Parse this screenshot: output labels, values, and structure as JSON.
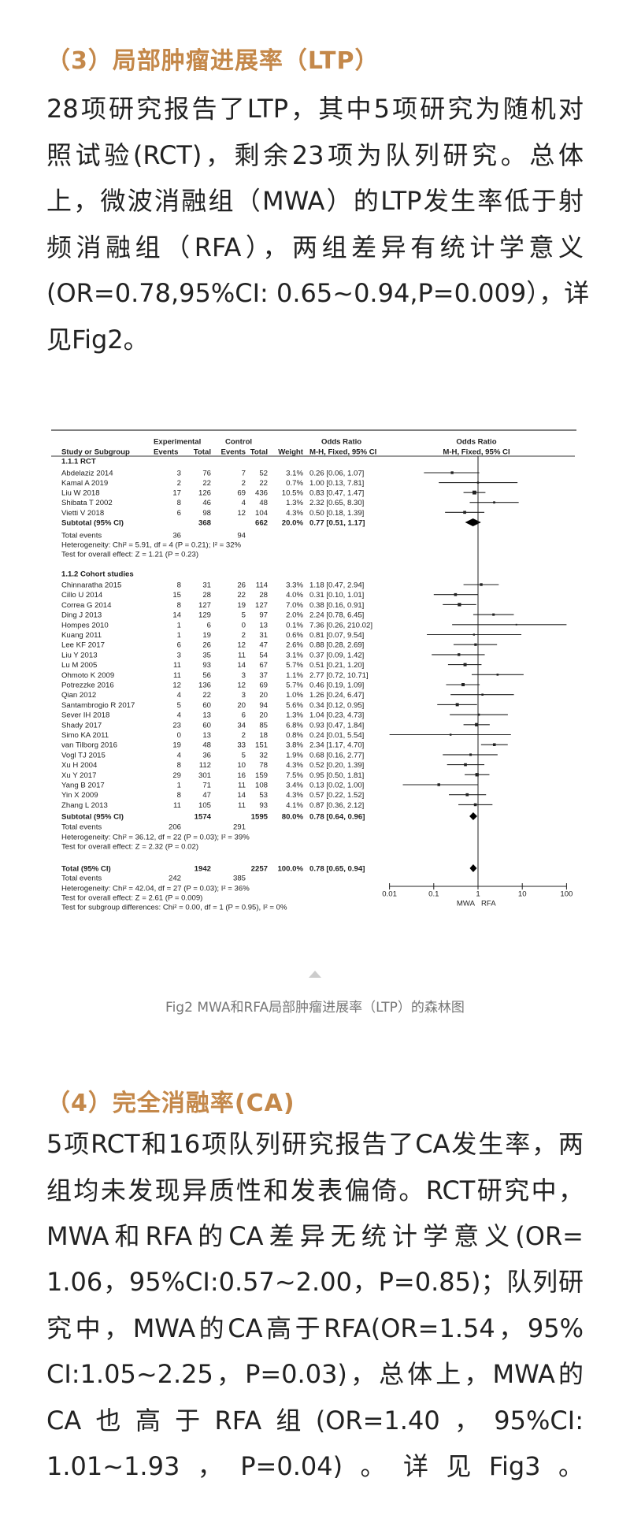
{
  "section3": {
    "title": "（3）局部肿瘤进展率（LTP）",
    "lines": [
      "28项研究报告了LTP，其中5项研究为随机对",
      "照试验(RCT)，剩余23项为队列研究。总体",
      "上，微波消融组（MWA）的LTP发生率低于射",
      "频消融组（RFA），两组差异有统计学意义",
      "(OR=0.78,95%CI: 0.65~0.94,P=0.009），详",
      "见Fig2。"
    ]
  },
  "figure": {
    "caption": "Fig2 MWA和RFA局部肿瘤进展率（LTP）的森林图",
    "expand_icon": "triangle-up-icon"
  },
  "chart_data": {
    "type": "forest",
    "headers": {
      "experimental": "Experimental",
      "control": "Control",
      "odds_ratio": "Odds Ratio",
      "study": "Study or Subgroup",
      "events": "Events",
      "total": "Total",
      "weight": "Weight",
      "method": "M-H, Fixed, 95% CI"
    },
    "x_axis": {
      "scale": "log",
      "ticks": [
        "0.01",
        "0.1",
        "1",
        "10",
        "100"
      ],
      "range": [
        0.01,
        100
      ],
      "left_label": "MWA",
      "right_label": "RFA"
    },
    "subgroups": [
      {
        "label": "1.1.1 RCT",
        "studies": [
          {
            "name": "Abdelaziz 2014",
            "e_ev": "3",
            "e_tot": "76",
            "c_ev": "7",
            "c_tot": "52",
            "weight": "3.1%",
            "or_text": "0.26 [0.06, 1.07]",
            "or": 0.26,
            "lo": 0.06,
            "hi": 1.07
          },
          {
            "name": "Kamal A 2019",
            "e_ev": "2",
            "e_tot": "22",
            "c_ev": "2",
            "c_tot": "22",
            "weight": "0.7%",
            "or_text": "1.00 [0.13, 7.81]",
            "or": 1.0,
            "lo": 0.13,
            "hi": 7.81
          },
          {
            "name": "Liu W 2018",
            "e_ev": "17",
            "e_tot": "126",
            "c_ev": "69",
            "c_tot": "436",
            "weight": "10.5%",
            "or_text": "0.83 [0.47, 1.47]",
            "or": 0.83,
            "lo": 0.47,
            "hi": 1.47
          },
          {
            "name": "Shibata T 2002",
            "e_ev": "8",
            "e_tot": "46",
            "c_ev": "4",
            "c_tot": "48",
            "weight": "1.3%",
            "or_text": "2.32 [0.65, 8.30]",
            "or": 2.32,
            "lo": 0.65,
            "hi": 8.3
          },
          {
            "name": "Vietti V 2018",
            "e_ev": "6",
            "e_tot": "98",
            "c_ev": "12",
            "c_tot": "104",
            "weight": "4.3%",
            "or_text": "0.50 [0.18, 1.39]",
            "or": 0.5,
            "lo": 0.18,
            "hi": 1.39
          }
        ],
        "subtotal": {
          "name": "Subtotal (95% CI)",
          "e_tot": "368",
          "c_tot": "662",
          "weight": "20.0%",
          "or_text": "0.77 [0.51, 1.17]",
          "or": 0.77,
          "lo": 0.51,
          "hi": 1.17
        },
        "total_events": {
          "label": "Total events",
          "e": "36",
          "c": "94"
        },
        "heterogeneity": "Heterogeneity: Chi² = 5.91, df = 4 (P = 0.21); I² = 32%",
        "overall_effect": "Test for overall effect: Z = 1.21 (P = 0.23)"
      },
      {
        "label": "1.1.2 Cohort studies",
        "studies": [
          {
            "name": "Chinnaratha 2015",
            "e_ev": "8",
            "e_tot": "31",
            "c_ev": "26",
            "c_tot": "114",
            "weight": "3.3%",
            "or_text": "1.18 [0.47, 2.94]",
            "or": 1.18,
            "lo": 0.47,
            "hi": 2.94
          },
          {
            "name": "Cillo U 2014",
            "e_ev": "15",
            "e_tot": "28",
            "c_ev": "22",
            "c_tot": "28",
            "weight": "4.0%",
            "or_text": "0.31 [0.10, 1.01]",
            "or": 0.31,
            "lo": 0.1,
            "hi": 1.01
          },
          {
            "name": "Correa G 2014",
            "e_ev": "8",
            "e_tot": "127",
            "c_ev": "19",
            "c_tot": "127",
            "weight": "7.0%",
            "or_text": "0.38 [0.16, 0.91]",
            "or": 0.38,
            "lo": 0.16,
            "hi": 0.91
          },
          {
            "name": "Ding J 2013",
            "e_ev": "14",
            "e_tot": "129",
            "c_ev": "5",
            "c_tot": "97",
            "weight": "2.0%",
            "or_text": "2.24 [0.78, 6.45]",
            "or": 2.24,
            "lo": 0.78,
            "hi": 6.45
          },
          {
            "name": "Hompes 2010",
            "e_ev": "1",
            "e_tot": "6",
            "c_ev": "0",
            "c_tot": "13",
            "weight": "0.1%",
            "or_text": "7.36 [0.26, 210.02]",
            "or": 7.36,
            "lo": 0.26,
            "hi": 210.02
          },
          {
            "name": "Kuang 2011",
            "e_ev": "1",
            "e_tot": "19",
            "c_ev": "2",
            "c_tot": "31",
            "weight": "0.6%",
            "or_text": "0.81 [0.07, 9.54]",
            "or": 0.81,
            "lo": 0.07,
            "hi": 9.54
          },
          {
            "name": "Lee KF 2017",
            "e_ev": "6",
            "e_tot": "26",
            "c_ev": "12",
            "c_tot": "47",
            "weight": "2.6%",
            "or_text": "0.88 [0.28, 2.69]",
            "or": 0.88,
            "lo": 0.28,
            "hi": 2.69
          },
          {
            "name": "Liu Y 2013",
            "e_ev": "3",
            "e_tot": "35",
            "c_ev": "11",
            "c_tot": "54",
            "weight": "3.1%",
            "or_text": "0.37 [0.09, 1.42]",
            "or": 0.37,
            "lo": 0.09,
            "hi": 1.42
          },
          {
            "name": "Lu M 2005",
            "e_ev": "11",
            "e_tot": "93",
            "c_ev": "14",
            "c_tot": "67",
            "weight": "5.7%",
            "or_text": "0.51 [0.21, 1.20]",
            "or": 0.51,
            "lo": 0.21,
            "hi": 1.2
          },
          {
            "name": "Ohmoto K 2009",
            "e_ev": "11",
            "e_tot": "56",
            "c_ev": "3",
            "c_tot": "37",
            "weight": "1.1%",
            "or_text": "2.77 [0.72, 10.71]",
            "or": 2.77,
            "lo": 0.72,
            "hi": 10.71
          },
          {
            "name": "Potrezzke 2016",
            "e_ev": "12",
            "e_tot": "136",
            "c_ev": "12",
            "c_tot": "69",
            "weight": "5.7%",
            "or_text": "0.46 [0.19, 1.09]",
            "or": 0.46,
            "lo": 0.19,
            "hi": 1.09
          },
          {
            "name": "Qian 2012",
            "e_ev": "4",
            "e_tot": "22",
            "c_ev": "3",
            "c_tot": "20",
            "weight": "1.0%",
            "or_text": "1.26 [0.24, 6.47]",
            "or": 1.26,
            "lo": 0.24,
            "hi": 6.47
          },
          {
            "name": "Santambrogio R 2017",
            "e_ev": "5",
            "e_tot": "60",
            "c_ev": "20",
            "c_tot": "94",
            "weight": "5.6%",
            "or_text": "0.34 [0.12, 0.95]",
            "or": 0.34,
            "lo": 0.12,
            "hi": 0.95
          },
          {
            "name": "Sever IH 2018",
            "e_ev": "4",
            "e_tot": "13",
            "c_ev": "6",
            "c_tot": "20",
            "weight": "1.3%",
            "or_text": "1.04 [0.23, 4.73]",
            "or": 1.04,
            "lo": 0.23,
            "hi": 4.73
          },
          {
            "name": "Shady 2017",
            "e_ev": "23",
            "e_tot": "60",
            "c_ev": "34",
            "c_tot": "85",
            "weight": "6.8%",
            "or_text": "0.93 [0.47, 1.84]",
            "or": 0.93,
            "lo": 0.47,
            "hi": 1.84
          },
          {
            "name": "Simo KA 2011",
            "e_ev": "0",
            "e_tot": "13",
            "c_ev": "2",
            "c_tot": "18",
            "weight": "0.8%",
            "or_text": "0.24 [0.01, 5.54]",
            "or": 0.24,
            "lo": 0.01,
            "hi": 5.54
          },
          {
            "name": "van Tilborg 2016",
            "e_ev": "19",
            "e_tot": "48",
            "c_ev": "33",
            "c_tot": "151",
            "weight": "3.8%",
            "or_text": "2.34 [1.17, 4.70]",
            "or": 2.34,
            "lo": 1.17,
            "hi": 4.7
          },
          {
            "name": "Vogl TJ 2015",
            "e_ev": "4",
            "e_tot": "36",
            "c_ev": "5",
            "c_tot": "32",
            "weight": "1.9%",
            "or_text": "0.68 [0.16, 2.77]",
            "or": 0.68,
            "lo": 0.16,
            "hi": 2.77
          },
          {
            "name": "Xu H 2004",
            "e_ev": "8",
            "e_tot": "112",
            "c_ev": "10",
            "c_tot": "78",
            "weight": "4.3%",
            "or_text": "0.52 [0.20, 1.39]",
            "or": 0.52,
            "lo": 0.2,
            "hi": 1.39
          },
          {
            "name": "Xu Y 2017",
            "e_ev": "29",
            "e_tot": "301",
            "c_ev": "16",
            "c_tot": "159",
            "weight": "7.5%",
            "or_text": "0.95 [0.50, 1.81]",
            "or": 0.95,
            "lo": 0.5,
            "hi": 1.81
          },
          {
            "name": "Yang B 2017",
            "e_ev": "1",
            "e_tot": "71",
            "c_ev": "11",
            "c_tot": "108",
            "weight": "3.4%",
            "or_text": "0.13 [0.02, 1.00]",
            "or": 0.13,
            "lo": 0.02,
            "hi": 1.0
          },
          {
            "name": "Yin X 2009",
            "e_ev": "8",
            "e_tot": "47",
            "c_ev": "14",
            "c_tot": "53",
            "weight": "4.3%",
            "or_text": "0.57 [0.22, 1.52]",
            "or": 0.57,
            "lo": 0.22,
            "hi": 1.52
          },
          {
            "name": "Zhang L 2013",
            "e_ev": "11",
            "e_tot": "105",
            "c_ev": "11",
            "c_tot": "93",
            "weight": "4.1%",
            "or_text": "0.87 [0.36, 2.12]",
            "or": 0.87,
            "lo": 0.36,
            "hi": 2.12
          }
        ],
        "subtotal": {
          "name": "Subtotal (95% CI)",
          "e_tot": "1574",
          "c_tot": "1595",
          "weight": "80.0%",
          "or_text": "0.78 [0.64, 0.96]",
          "or": 0.78,
          "lo": 0.64,
          "hi": 0.96
        },
        "total_events": {
          "label": "Total events",
          "e": "206",
          "c": "291"
        },
        "heterogeneity": "Heterogeneity: Chi² = 36.12, df = 22 (P = 0.03); I² = 39%",
        "overall_effect": "Test for overall effect: Z = 2.32 (P = 0.02)"
      }
    ],
    "total": {
      "name": "Total (95% CI)",
      "e_tot": "1942",
      "c_tot": "2257",
      "weight": "100.0%",
      "or_text": "0.78 [0.65, 0.94]",
      "or": 0.78,
      "lo": 0.65,
      "hi": 0.94
    },
    "total_events": {
      "label": "Total events",
      "e": "242",
      "c": "385"
    },
    "heterogeneity": "Heterogeneity: Chi² = 42.04, df = 27 (P = 0.03); I² = 36%",
    "overall_effect": "Test for overall effect: Z = 2.61 (P = 0.009)",
    "subgroup_differences": "Test for subgroup differences: Chi² = 0.00, df = 1 (P = 0.95), I² = 0%"
  },
  "section4": {
    "title": "（4）完全消融率(CA)",
    "lines": [
      "5项RCT和16项队列研究报告了CA发生率，两",
      "组均未发现异质性和发表偏倚。RCT研究中，",
      "MWA和RFA的CA差异无统计学意义(OR=",
      "1.06，95%CI:0.57~2.00，P=0.85)；队列研",
      "究中，MWA的CA高于RFA(OR=1.54，95%",
      "CI:1.05~2.25，P=0.03)，总体上，MWA的",
      "CA也高于RFA组(OR=1.40，95%CI:",
      "1.01~1.93，P=0.04)。详见Fig3。"
    ]
  },
  "colors": {
    "heading": "#c4884a",
    "body": "#222222",
    "caption": "#777777"
  }
}
